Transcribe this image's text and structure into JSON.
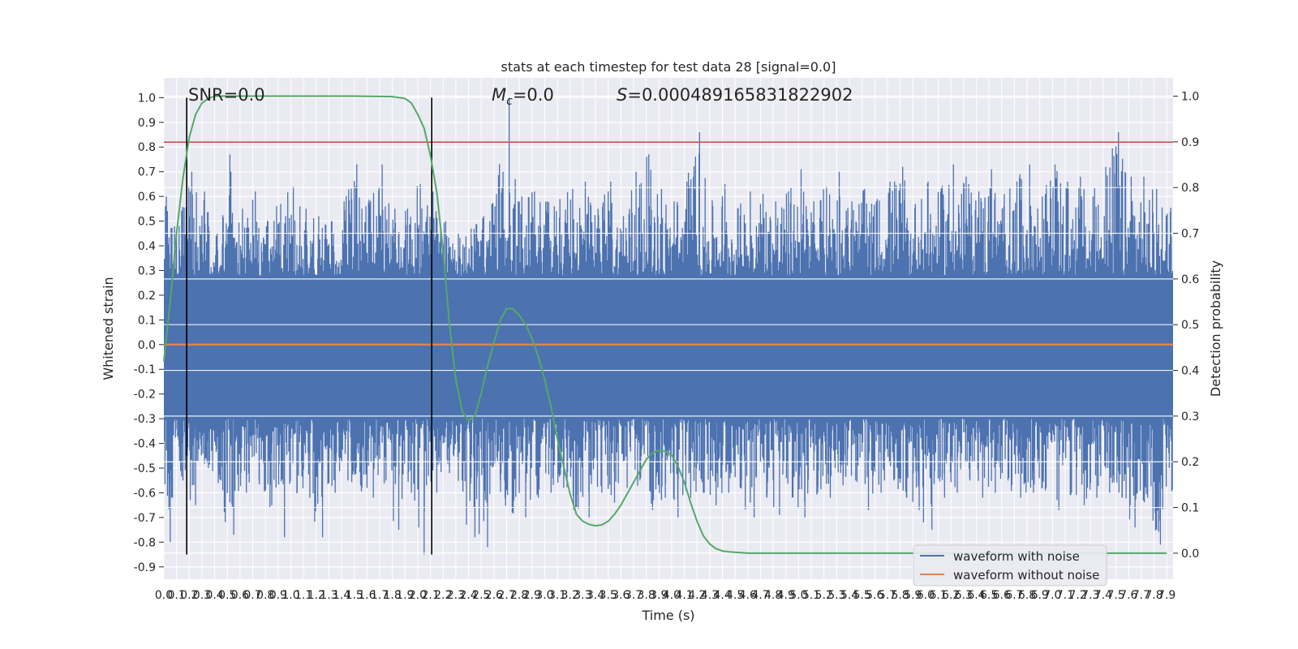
{
  "chart_data": {
    "type": "line",
    "title": "stats at each timestep for test data 28 [signal=0.0]",
    "xlabel": "Time (s)",
    "ylabel": "Whitened strain",
    "y2label": "Detection probability",
    "xlim": [
      0.0,
      7.95
    ],
    "ylim": [
      -0.95,
      1.08
    ],
    "y2lim": [
      -0.057,
      1.04
    ],
    "grid": true,
    "grid_minor_x": true,
    "legend_position": "lower-right",
    "x_ticks": [
      "0.0",
      "0.1",
      "0.2",
      "0.3",
      "0.4",
      "0.5",
      "0.6",
      "0.7",
      "0.8",
      "0.9",
      "1.0",
      "1.1",
      "1.2",
      "1.3",
      "1.4",
      "1.5",
      "1.6",
      "1.7",
      "1.8",
      "1.9",
      "2.0",
      "2.1",
      "2.2",
      "2.3",
      "2.4",
      "2.5",
      "2.6",
      "2.7",
      "2.8",
      "2.9",
      "3.0",
      "3.1",
      "3.2",
      "3.3",
      "3.4",
      "3.5",
      "3.6",
      "3.7",
      "3.8",
      "3.9",
      "4.0",
      "4.1",
      "4.2",
      "4.3",
      "4.4",
      "4.5",
      "4.6",
      "4.7",
      "4.8",
      "4.9",
      "5.0",
      "5.1",
      "5.2",
      "5.3",
      "5.4",
      "5.5",
      "5.6",
      "5.7",
      "5.8",
      "5.9",
      "6.0",
      "6.1",
      "6.2",
      "6.3",
      "6.4",
      "6.5",
      "6.6",
      "6.7",
      "6.8",
      "6.9",
      "7.0",
      "7.1",
      "7.2",
      "7.3",
      "7.4",
      "7.5",
      "7.6",
      "7.7",
      "7.8",
      "7.9"
    ],
    "y_ticks": [
      "1.0",
      "0.9",
      "0.8",
      "0.7",
      "0.6",
      "0.5",
      "0.4",
      "0.3",
      "0.2",
      "0.1",
      "0.0",
      "-0.1",
      "-0.2",
      "-0.3",
      "-0.4",
      "-0.5",
      "-0.6",
      "-0.7",
      "-0.8",
      "-0.9"
    ],
    "y2_ticks": [
      "1.0",
      "0.9",
      "0.8",
      "0.7",
      "0.6",
      "0.5",
      "0.4",
      "0.3",
      "0.2",
      "0.1",
      "0.0"
    ],
    "annotations": [
      {
        "text": "SNR=0.0",
        "x": 0.2
      },
      {
        "text": "M_c=0.0",
        "x": 2.6
      },
      {
        "text": "S=0.000489165831822902",
        "x": 3.6
      }
    ],
    "vlines": [
      {
        "x": 0.18,
        "ymin": -0.85,
        "ymax": 1.0,
        "color": "#000000"
      },
      {
        "x": 2.11,
        "ymin": -0.85,
        "ymax": 1.0,
        "color": "#000000"
      }
    ],
    "hline": {
      "y": 0.82,
      "color": "#c44e52"
    },
    "series": [
      {
        "name": "waveform with noise",
        "color": "#4c72b0",
        "axis": "left",
        "envelope_x": [
          0.0,
          0.1,
          0.2,
          0.3,
          0.4,
          0.5,
          0.6,
          0.7,
          0.8,
          0.9,
          1.0,
          1.1,
          1.2,
          1.3,
          1.4,
          1.5,
          1.6,
          1.7,
          1.8,
          1.9,
          2.0,
          2.1,
          2.2,
          2.3,
          2.4,
          2.5,
          2.6,
          2.7,
          2.8,
          2.9,
          3.0,
          3.1,
          3.2,
          3.3,
          3.4,
          3.5,
          3.6,
          3.7,
          3.8,
          3.9,
          4.0,
          4.1,
          4.2,
          4.3,
          4.4,
          4.5,
          4.6,
          4.7,
          4.8,
          4.9,
          5.0,
          5.1,
          5.2,
          5.3,
          5.4,
          5.5,
          5.6,
          5.7,
          5.8,
          5.9,
          6.0,
          6.1,
          6.2,
          6.3,
          6.4,
          6.5,
          6.6,
          6.7,
          6.8,
          6.9,
          7.0,
          7.1,
          7.2,
          7.3,
          7.4,
          7.5,
          7.6,
          7.7,
          7.8,
          7.95
        ],
        "envelope_max": [
          0.6,
          0.48,
          0.7,
          0.62,
          0.45,
          0.77,
          0.55,
          0.62,
          0.5,
          0.57,
          0.64,
          0.55,
          0.52,
          0.48,
          0.58,
          0.73,
          0.57,
          0.73,
          0.55,
          0.55,
          0.65,
          0.62,
          0.5,
          0.45,
          0.47,
          0.52,
          0.61,
          1.0,
          0.6,
          0.62,
          0.58,
          0.59,
          0.63,
          0.66,
          0.55,
          0.66,
          0.52,
          0.7,
          0.77,
          0.63,
          0.58,
          0.66,
          0.86,
          0.57,
          0.65,
          0.55,
          0.62,
          0.61,
          0.58,
          0.62,
          0.71,
          0.58,
          0.64,
          0.7,
          0.58,
          0.63,
          0.59,
          0.66,
          0.72,
          0.57,
          0.66,
          0.62,
          0.73,
          0.68,
          0.62,
          0.71,
          0.61,
          0.66,
          0.73,
          0.6,
          0.73,
          0.66,
          0.68,
          0.6,
          0.72,
          0.86,
          0.68,
          0.68,
          0.63,
          0.62
        ],
        "envelope_min": [
          -0.8,
          -0.55,
          -0.65,
          -0.5,
          -0.55,
          -0.77,
          -0.6,
          -0.55,
          -0.65,
          -0.78,
          -0.6,
          -0.62,
          -0.78,
          -0.6,
          -0.55,
          -0.57,
          -0.62,
          -0.55,
          -0.75,
          -0.6,
          -0.85,
          -0.6,
          -0.52,
          -0.55,
          -0.78,
          -0.82,
          -0.55,
          -0.67,
          -0.7,
          -0.62,
          -0.6,
          -0.58,
          -0.66,
          -0.7,
          -0.6,
          -0.64,
          -0.58,
          -0.55,
          -0.67,
          -0.62,
          -0.7,
          -0.62,
          -0.6,
          -0.65,
          -0.6,
          -0.55,
          -0.7,
          -0.62,
          -0.69,
          -0.62,
          -0.7,
          -0.6,
          -0.62,
          -0.57,
          -0.55,
          -0.67,
          -0.6,
          -0.55,
          -0.62,
          -0.67,
          -0.75,
          -0.62,
          -0.6,
          -0.55,
          -0.62,
          -0.6,
          -0.55,
          -0.62,
          -0.6,
          -0.58,
          -0.67,
          -0.6,
          -0.65,
          -0.62,
          -0.6,
          -0.62,
          -0.74,
          -0.62,
          -0.81,
          -0.63
        ],
        "band_min": -0.3,
        "band_max": 0.28
      },
      {
        "name": "waveform without noise",
        "color": "#dd8452",
        "axis": "left",
        "x": [
          0.0,
          7.95
        ],
        "y": [
          0.0,
          0.0
        ]
      },
      {
        "name": "",
        "color": "#55a868",
        "axis": "right",
        "x": [
          0.0,
          0.05,
          0.1,
          0.15,
          0.2,
          0.25,
          0.3,
          0.35,
          0.4,
          0.5,
          0.6,
          0.8,
          1.0,
          1.5,
          1.8,
          1.9,
          1.95,
          2.0,
          2.05,
          2.1,
          2.15,
          2.2,
          2.25,
          2.3,
          2.35,
          2.4,
          2.45,
          2.5,
          2.55,
          2.6,
          2.65,
          2.7,
          2.75,
          2.8,
          2.85,
          2.9,
          2.95,
          3.0,
          3.05,
          3.1,
          3.15,
          3.2,
          3.25,
          3.3,
          3.35,
          3.4,
          3.45,
          3.5,
          3.55,
          3.6,
          3.65,
          3.7,
          3.75,
          3.8,
          3.85,
          3.9,
          3.95,
          4.0,
          4.05,
          4.1,
          4.15,
          4.2,
          4.25,
          4.3,
          4.35,
          4.4,
          4.45,
          4.5,
          4.55,
          4.6,
          4.65,
          4.7,
          4.75,
          4.8,
          4.9,
          5.0,
          5.5,
          6.0,
          7.0,
          7.9
        ],
        "y": [
          0.42,
          0.55,
          0.7,
          0.82,
          0.91,
          0.96,
          0.985,
          0.995,
          1.0,
          1.0,
          1.0,
          1.0,
          1.0,
          1.0,
          0.999,
          0.995,
          0.985,
          0.96,
          0.93,
          0.87,
          0.79,
          0.66,
          0.5,
          0.38,
          0.31,
          0.29,
          0.3,
          0.35,
          0.41,
          0.46,
          0.51,
          0.535,
          0.535,
          0.52,
          0.5,
          0.47,
          0.43,
          0.38,
          0.32,
          0.25,
          0.19,
          0.13,
          0.085,
          0.07,
          0.063,
          0.06,
          0.062,
          0.07,
          0.085,
          0.105,
          0.13,
          0.155,
          0.18,
          0.205,
          0.22,
          0.225,
          0.223,
          0.215,
          0.19,
          0.155,
          0.11,
          0.07,
          0.038,
          0.02,
          0.01,
          0.005,
          0.003,
          0.002,
          0.001,
          0.0,
          0.0,
          0.0,
          0.0,
          0.0,
          0.0,
          0.0,
          0.0,
          0.0,
          0.0,
          0.0
        ]
      }
    ]
  }
}
